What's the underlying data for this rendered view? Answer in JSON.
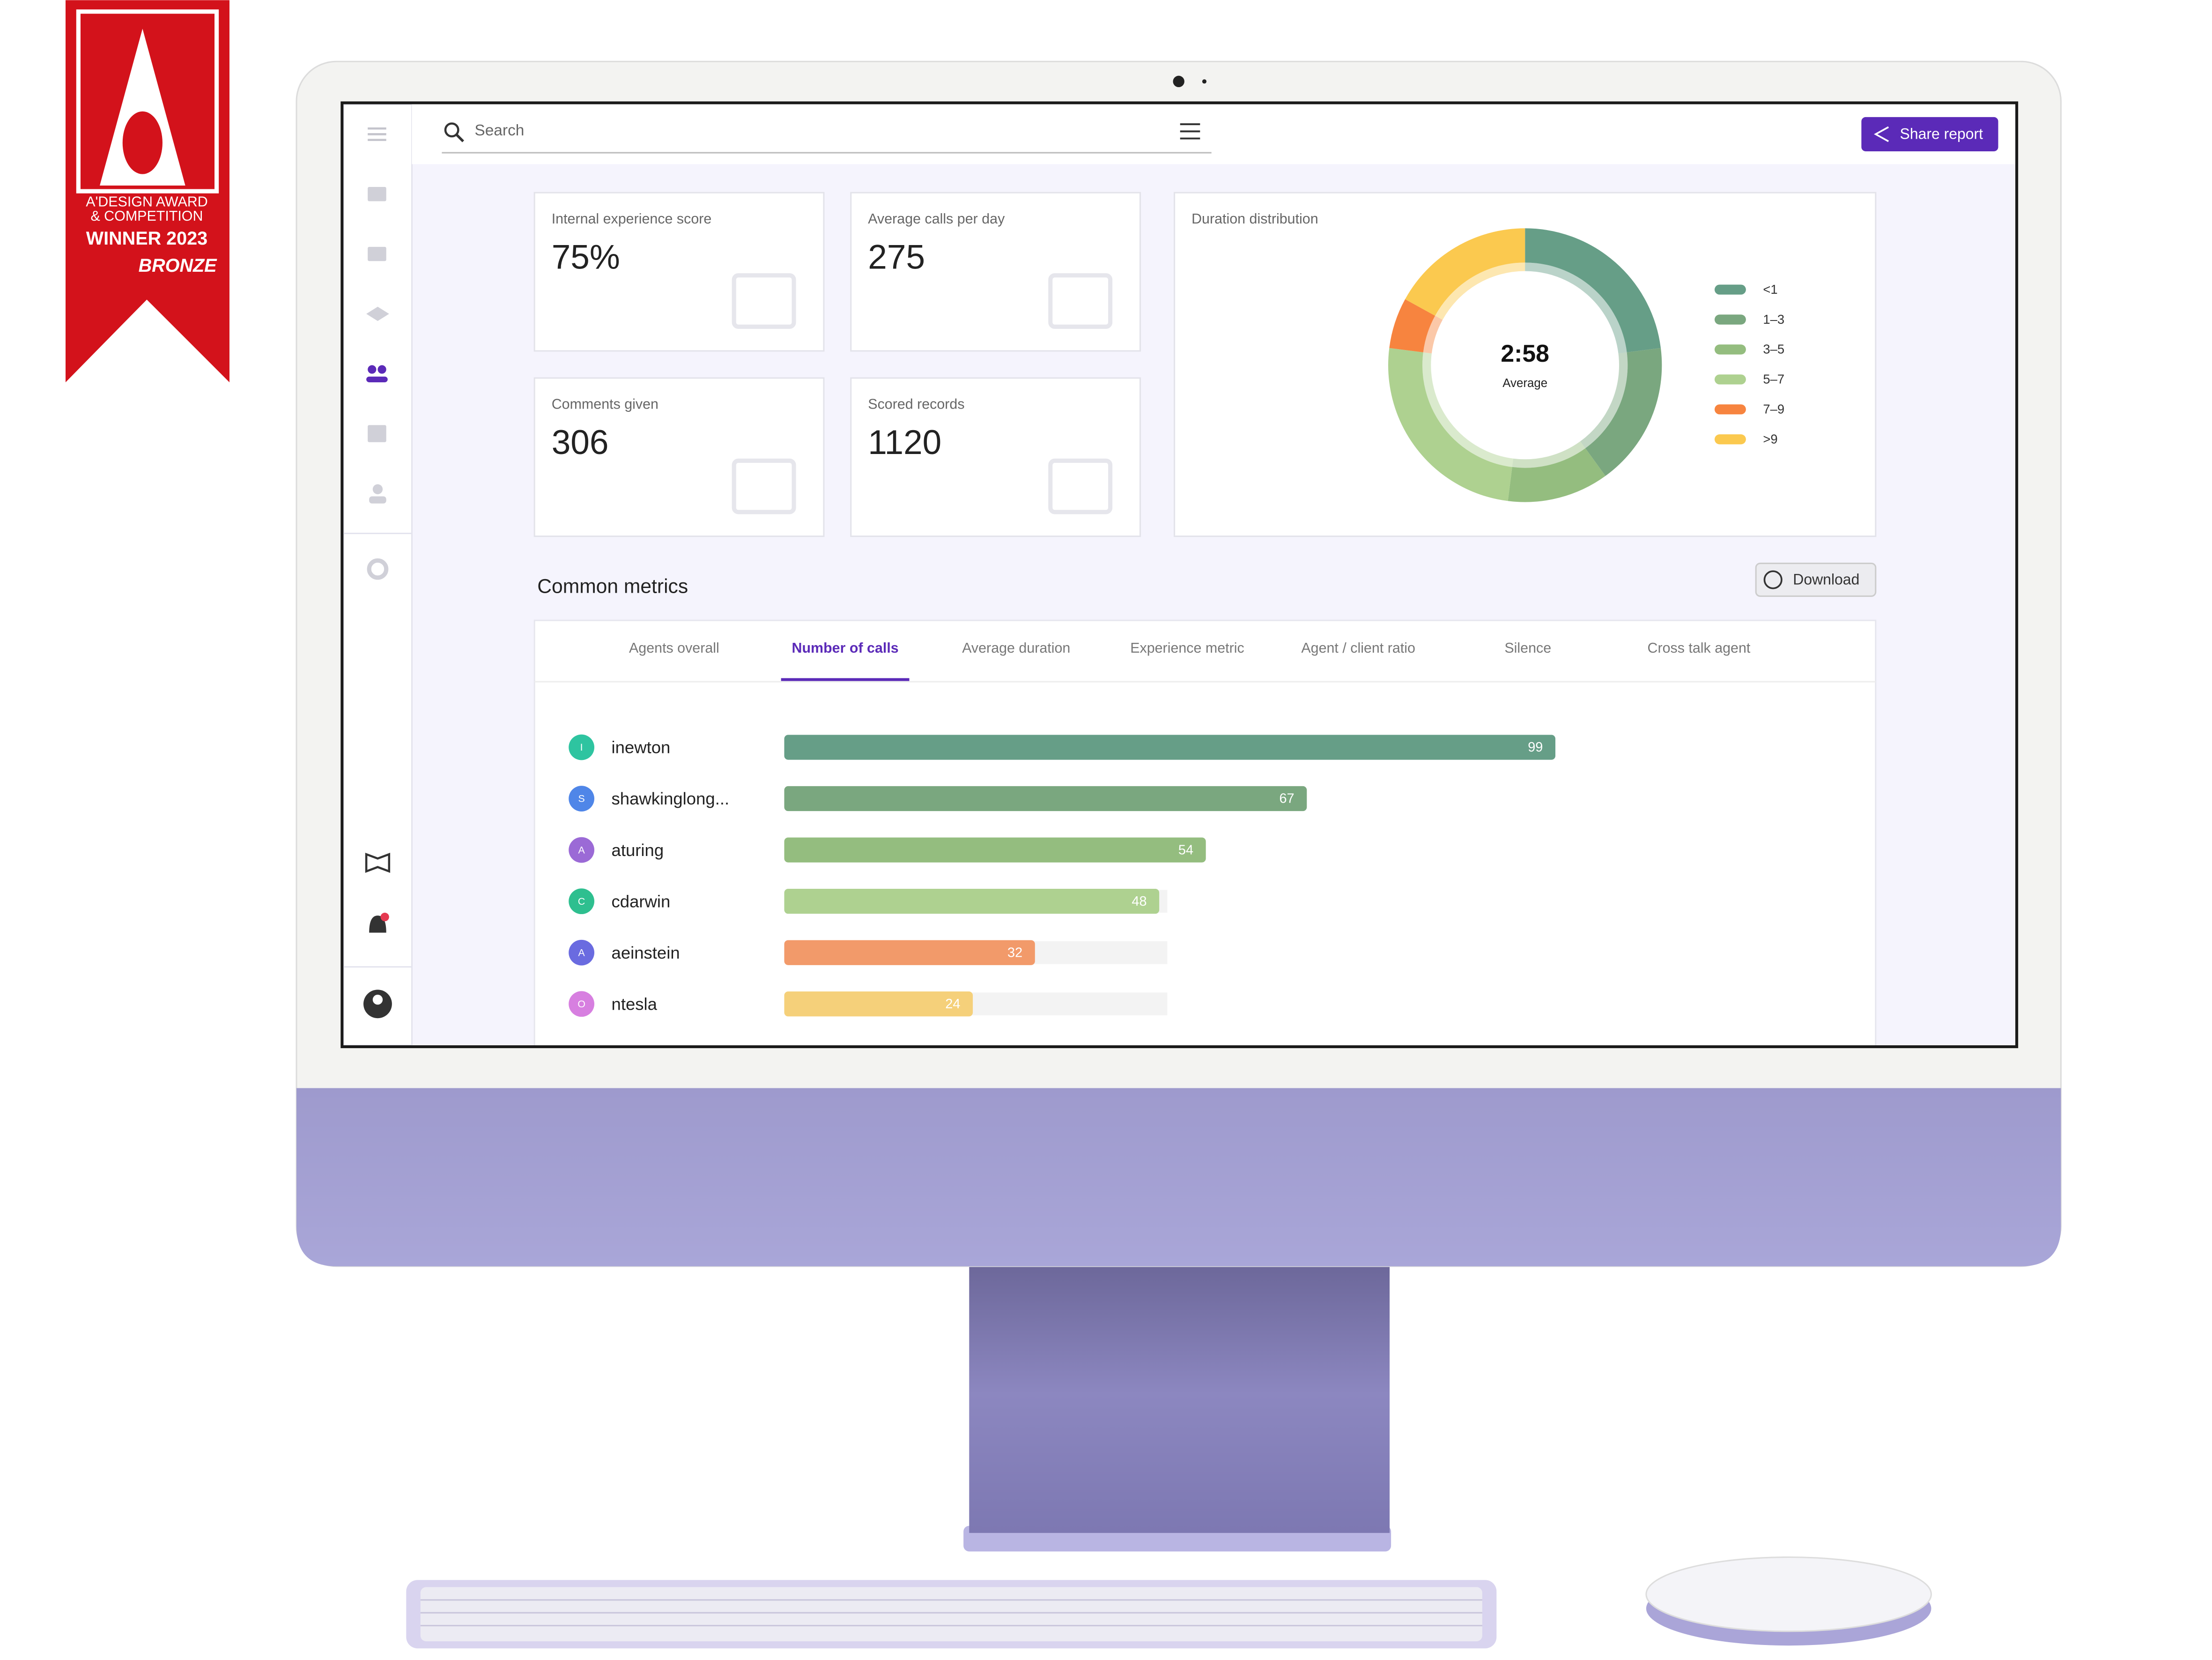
{
  "badge": {
    "line1": "A'DESIGN AWARD",
    "line2": "& COMPETITION",
    "line3": "WINNER 2023",
    "line4": "BRONZE"
  },
  "search": {
    "placeholder": "Search"
  },
  "share_button": "Share report",
  "kpis": [
    {
      "label": "Internal experience score",
      "value": "75%"
    },
    {
      "label": "Average calls per day",
      "value": "275"
    },
    {
      "label": "Comments given",
      "value": "306"
    },
    {
      "label": "Scored records",
      "value": "1120"
    }
  ],
  "section": {
    "title": "Common metrics",
    "download": "Download",
    "tabs": [
      "Agents overall",
      "Number of calls",
      "Average duration",
      "Experience metric",
      "Agent / client ratio",
      "Silence",
      "Cross talk agent"
    ],
    "active_tab": 1
  },
  "chart_data": [
    {
      "type": "donut",
      "title": "Duration distribution",
      "center_value": "2:58",
      "center_label": "Average",
      "categories": [
        "<1",
        "1–3",
        "3–5",
        "5–7",
        "7–9",
        ">9"
      ],
      "values": [
        23,
        17,
        12,
        25,
        6,
        17
      ],
      "colors": [
        "#669e87",
        "#7aa77f",
        "#94bd7f",
        "#aed190",
        "#f7843f",
        "#fbc94f"
      ]
    },
    {
      "type": "hbar",
      "categories": [
        "inewton",
        "shawkinglong...",
        "aturing",
        "cdarwin",
        "aeinstein",
        "ntesla"
      ],
      "avatars": [
        "I",
        "S",
        "A",
        "C",
        "A",
        "O"
      ],
      "avatar_colors": [
        "#2ec4a0",
        "#4f86e8",
        "#9b6ad6",
        "#2ebf8f",
        "#6a6be0",
        "#d77fe0"
      ],
      "values": [
        99,
        67,
        54,
        48,
        32,
        24
      ],
      "colors": [
        "#669e87",
        "#7aa77f",
        "#94bd7f",
        "#aed190",
        "#f29a6a",
        "#f5d07a"
      ],
      "xlim": [
        0,
        100
      ]
    }
  ]
}
